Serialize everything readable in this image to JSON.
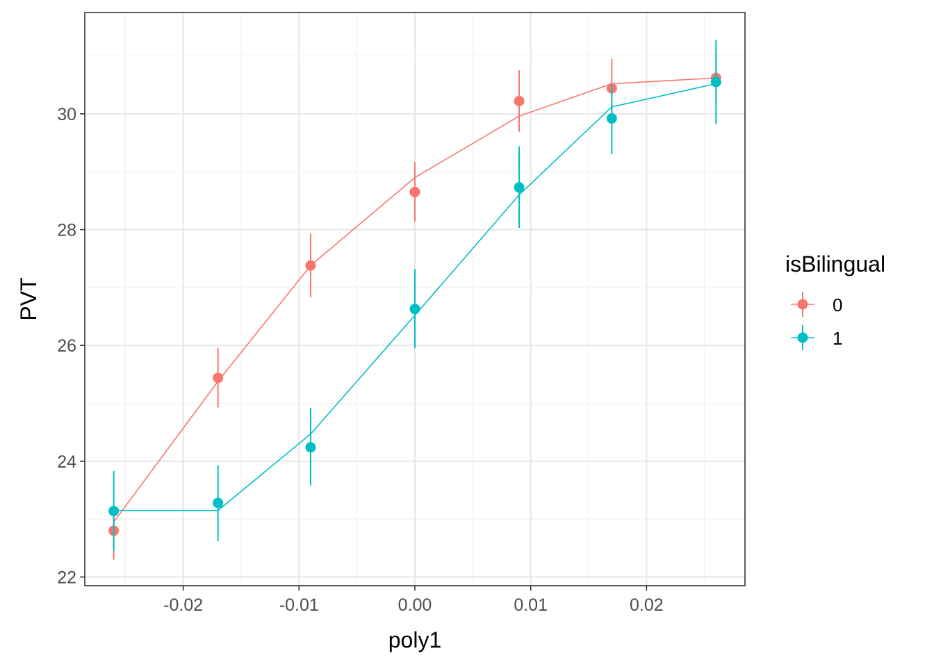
{
  "chart_data": {
    "type": "line",
    "title": "",
    "xlabel": "poly1",
    "ylabel": "PVT",
    "xlim": [
      -0.0285,
      0.0285
    ],
    "ylim": [
      21.85,
      31.75
    ],
    "x_ticks": [
      -0.02,
      -0.01,
      0.0,
      0.01,
      0.02
    ],
    "x_tick_labels": [
      "-0.02",
      "-0.01",
      "0.00",
      "0.01",
      "0.02"
    ],
    "y_ticks": [
      22,
      24,
      26,
      28,
      30
    ],
    "y_tick_labels": [
      "22",
      "24",
      "26",
      "28",
      "30"
    ],
    "grid": true,
    "legend": {
      "title": "isBilingual",
      "position": "right"
    },
    "series": [
      {
        "name": "0",
        "color": "#F8766D",
        "x": [
          -0.026,
          -0.017,
          -0.009,
          0.0,
          0.009,
          0.017,
          0.026
        ],
        "points": [
          22.8,
          25.44,
          27.38,
          28.65,
          30.22,
          30.44,
          30.62
        ],
        "err_low": [
          22.3,
          24.93,
          26.83,
          28.14,
          29.69,
          29.93,
          30.2
        ],
        "err_high": [
          23.3,
          25.96,
          27.93,
          29.17,
          30.75,
          30.95,
          31.05
        ],
        "fit": [
          22.95,
          25.38,
          27.38,
          28.9,
          29.96,
          30.52,
          30.62
        ]
      },
      {
        "name": "1",
        "color": "#00BFC4",
        "x": [
          -0.026,
          -0.017,
          -0.009,
          0.0,
          0.009,
          0.017,
          0.026
        ],
        "points": [
          23.14,
          23.28,
          24.24,
          26.63,
          28.73,
          29.92,
          30.55
        ],
        "err_low": [
          22.45,
          22.62,
          23.58,
          25.95,
          28.03,
          29.3,
          29.82
        ],
        "err_high": [
          23.83,
          23.93,
          24.92,
          27.32,
          29.44,
          30.5,
          31.28
        ],
        "fit": [
          23.15,
          23.15,
          24.47,
          26.52,
          28.6,
          30.12,
          30.52
        ]
      }
    ]
  }
}
